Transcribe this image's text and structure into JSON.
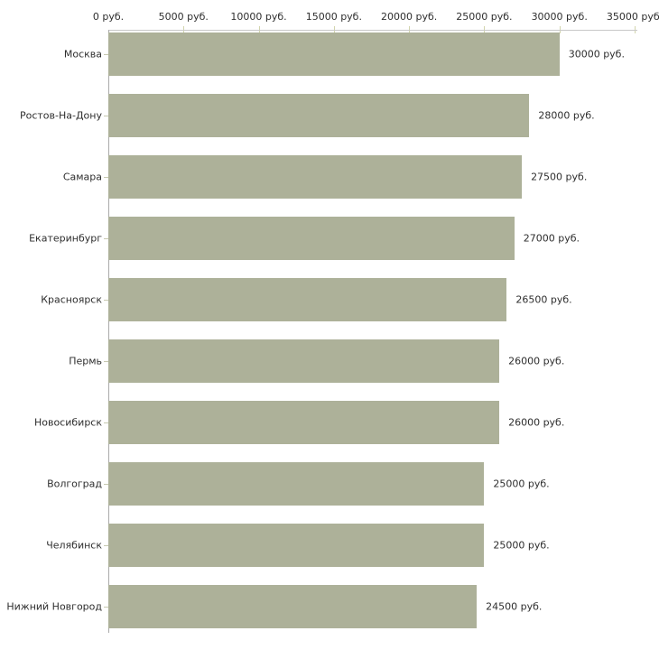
{
  "chart_data": {
    "type": "bar",
    "orientation": "horizontal",
    "title": "",
    "xlabel": "",
    "ylabel": "",
    "xlim": [
      0,
      35000
    ],
    "grid": false,
    "legend": false,
    "unit_suffix": " руб.",
    "categories": [
      "Москва",
      "Ростов-На-Дону",
      "Самара",
      "Екатеринбург",
      "Красноярск",
      "Пермь",
      "Новосибирск",
      "Волгоград",
      "Челябинск",
      "Нижний Новгород"
    ],
    "values": [
      30000,
      28000,
      27500,
      27000,
      26500,
      26000,
      26000,
      25000,
      25000,
      24500
    ],
    "value_labels": [
      "30000 руб.",
      "28000 руб.",
      "27500 руб.",
      "27000 руб.",
      "26500 руб.",
      "26000 руб.",
      "26000 руб.",
      "25000 руб.",
      "25000 руб.",
      "24500 руб."
    ],
    "x_ticks": [
      0,
      5000,
      10000,
      15000,
      20000,
      25000,
      30000,
      35000
    ],
    "x_tick_labels": [
      "0 руб.",
      "5000 руб.",
      "10000 руб.",
      "15000 руб.",
      "20000 руб.",
      "25000 руб.",
      "30000 руб.",
      "35000 руб."
    ],
    "colors": {
      "bar": "#adb199",
      "axis_line": "#c8c8c8",
      "y_axis_line": "#aaaaaa",
      "x_tick": "#d2d5ad",
      "y_tick": "#c6c8b0",
      "text": "#2e2e2e",
      "background": "#ffffff"
    }
  }
}
